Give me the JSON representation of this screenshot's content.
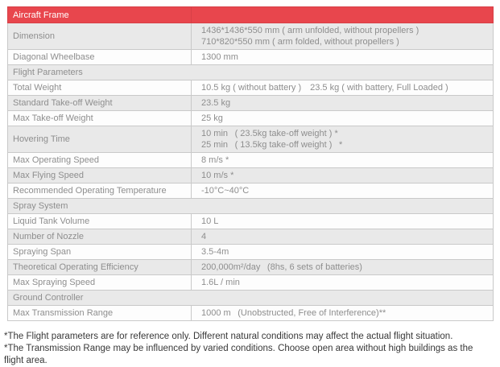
{
  "theme": {
    "accent_color": "#e8464d",
    "shaded_row_color": "#e9e9e9",
    "border_color": "#c9c9c9",
    "label_text_color": "#8e8e8e",
    "note_text_color": "#383838"
  },
  "table": {
    "rows": [
      {
        "type": "title",
        "label": "Aircraft Frame",
        "value": ""
      },
      {
        "type": "data",
        "label": "Dimension",
        "value": "1436*1436*550 mm ( arm unfolded, without propellers )\n710*820*550 mm ( arm folded, without propellers )"
      },
      {
        "type": "data",
        "label": "Diagonal Wheelbase",
        "value": "1300 mm"
      },
      {
        "type": "section",
        "label": "Flight Parameters",
        "value": ""
      },
      {
        "type": "data",
        "label": "Total Weight",
        "value": "10.5 kg ( without battery ) 23.5 kg ( with battery, Full Loaded )"
      },
      {
        "type": "data",
        "label": "Standard Take-off Weight",
        "value": "23.5 kg"
      },
      {
        "type": "data",
        "label": "Max Take-off Weight",
        "value": "25 kg"
      },
      {
        "type": "data",
        "label": "Hovering Time",
        "value": "10 min  ( 23.5kg take-off weight ) *\n25 min  ( 13.5kg take-off weight )  *"
      },
      {
        "type": "data",
        "label": "Max Operating Speed",
        "value": "8 m/s *"
      },
      {
        "type": "data",
        "label": "Max Flying Speed",
        "value": "10 m/s *"
      },
      {
        "type": "data",
        "label": "Recommended Operating Temperature",
        "value": "-10°C~40°C"
      },
      {
        "type": "section",
        "label": "Spray System",
        "value": ""
      },
      {
        "type": "data",
        "label": "Liquid Tank Volume",
        "value": "10 L"
      },
      {
        "type": "data",
        "label": "Number of Nozzle",
        "value": "4"
      },
      {
        "type": "data",
        "label": "Spraying Span",
        "value": "3.5-4m"
      },
      {
        "type": "data",
        "label": "Theoretical Operating Efficiency",
        "value": "200,000m²/day  (8hs, 6 sets of batteries)"
      },
      {
        "type": "data",
        "label": "Max Spraying Speed",
        "value": "1.6L / min"
      },
      {
        "type": "section",
        "label": "Ground Controller",
        "value": ""
      },
      {
        "type": "data",
        "label": "Max Transmission Range",
        "value": "1000 m  (Unobstructed, Free of Interference)**"
      }
    ]
  },
  "footnotes": [
    "*The Flight parameters are for reference only. Different natural conditions may affect the actual flight situation.",
    "*The Transmission Range may be influenced by varied conditions. Choose open area without high buildings as the flight area."
  ]
}
